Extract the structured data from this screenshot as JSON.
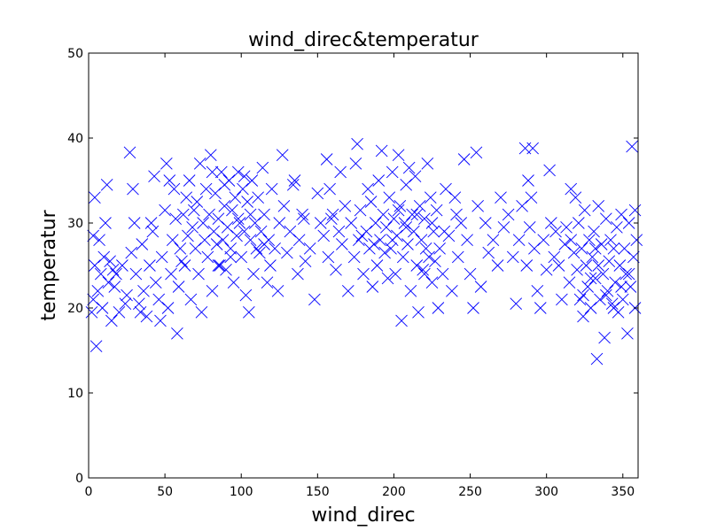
{
  "chart_data": {
    "type": "scatter",
    "title": "wind_direc&temperatur",
    "xlabel": "wind_direc",
    "ylabel": "temperatur",
    "xlim": [
      0,
      360
    ],
    "ylim": [
      0,
      50
    ],
    "xticks": [
      "0",
      "50",
      "100",
      "150",
      "200",
      "250",
      "300",
      "350"
    ],
    "yticks": [
      "0",
      "10",
      "20",
      "30",
      "40",
      "50"
    ],
    "marker": "x",
    "color": "#0000ff",
    "grid": false,
    "legend": "none",
    "points": [
      [
        2,
        19.5
      ],
      [
        3,
        21
      ],
      [
        4,
        25
      ],
      [
        5,
        15.5
      ],
      [
        6,
        22
      ],
      [
        7,
        28
      ],
      [
        8,
        24
      ],
      [
        9,
        20
      ],
      [
        10,
        26
      ],
      [
        11,
        30
      ],
      [
        12,
        34.5
      ],
      [
        13,
        23
      ],
      [
        14,
        25.5
      ],
      [
        15,
        18.5
      ],
      [
        17,
        22.5
      ],
      [
        18,
        24
      ],
      [
        20,
        19.5
      ],
      [
        22,
        25
      ],
      [
        25,
        21.5
      ],
      [
        27,
        38.3
      ],
      [
        28,
        26.5
      ],
      [
        29,
        34
      ],
      [
        30,
        30
      ],
      [
        31,
        24
      ],
      [
        33,
        20.5
      ],
      [
        35,
        27.5
      ],
      [
        36,
        22
      ],
      [
        38,
        19
      ],
      [
        40,
        25
      ],
      [
        42,
        29
      ],
      [
        43,
        35.5
      ],
      [
        44,
        23
      ],
      [
        46,
        21
      ],
      [
        48,
        26
      ],
      [
        50,
        31.5
      ],
      [
        51,
        37
      ],
      [
        52,
        20
      ],
      [
        54,
        24
      ],
      [
        55,
        28
      ],
      [
        56,
        34
      ],
      [
        57,
        30.5
      ],
      [
        58,
        17
      ],
      [
        59,
        22.5
      ],
      [
        60,
        27
      ],
      [
        62,
        31
      ],
      [
        63,
        25
      ],
      [
        64,
        33
      ],
      [
        65,
        28.5
      ],
      [
        66,
        35
      ],
      [
        67,
        21
      ],
      [
        68,
        29.5
      ],
      [
        70,
        27
      ],
      [
        71,
        32.5
      ],
      [
        72,
        24
      ],
      [
        73,
        37
      ],
      [
        74,
        19.5
      ],
      [
        75,
        30
      ],
      [
        76,
        28
      ],
      [
        77,
        34
      ],
      [
        78,
        26
      ],
      [
        79,
        31
      ],
      [
        80,
        38
      ],
      [
        81,
        22
      ],
      [
        82,
        29
      ],
      [
        83,
        33.5
      ],
      [
        84,
        27.5
      ],
      [
        85,
        30.5
      ],
      [
        86,
        25
      ],
      [
        87,
        36
      ],
      [
        88,
        28
      ],
      [
        89,
        32
      ],
      [
        90,
        24.5
      ],
      [
        91,
        29.5
      ],
      [
        92,
        35
      ],
      [
        93,
        27
      ],
      [
        94,
        31.5
      ],
      [
        95,
        23
      ],
      [
        96,
        33
      ],
      [
        97,
        28.5
      ],
      [
        98,
        36
      ],
      [
        99,
        30
      ],
      [
        100,
        26
      ],
      [
        101,
        34
      ],
      [
        102,
        29
      ],
      [
        103,
        21.5
      ],
      [
        104,
        32.5
      ],
      [
        105,
        19.5
      ],
      [
        106,
        28
      ],
      [
        107,
        35
      ],
      [
        108,
        24
      ],
      [
        109,
        30
      ],
      [
        110,
        27
      ],
      [
        111,
        33
      ],
      [
        112,
        26.5
      ],
      [
        113,
        29
      ],
      [
        114,
        36.5
      ],
      [
        115,
        31
      ],
      [
        117,
        23
      ],
      [
        118,
        28
      ],
      [
        120,
        34
      ],
      [
        122,
        27
      ],
      [
        124,
        22
      ],
      [
        125,
        30
      ],
      [
        127,
        38
      ],
      [
        128,
        32
      ],
      [
        130,
        26.5
      ],
      [
        132,
        29
      ],
      [
        134,
        34.5
      ],
      [
        135,
        35
      ],
      [
        137,
        24
      ],
      [
        138,
        28
      ],
      [
        140,
        31
      ],
      [
        142,
        25.5
      ],
      [
        145,
        27
      ],
      [
        148,
        21
      ],
      [
        150,
        33.5
      ],
      [
        152,
        30
      ],
      [
        154,
        28.5
      ],
      [
        156,
        37.5
      ],
      [
        157,
        26
      ],
      [
        158,
        34
      ],
      [
        160,
        31
      ],
      [
        162,
        24.5
      ],
      [
        164,
        29
      ],
      [
        165,
        36
      ],
      [
        166,
        27.5
      ],
      [
        168,
        32
      ],
      [
        170,
        22
      ],
      [
        172,
        30
      ],
      [
        174,
        26
      ],
      [
        175,
        37
      ],
      [
        176,
        39.3
      ],
      [
        177,
        28
      ],
      [
        178,
        31.5
      ],
      [
        180,
        24
      ],
      [
        182,
        29
      ],
      [
        183,
        34
      ],
      [
        184,
        27
      ],
      [
        185,
        32.5
      ],
      [
        186,
        22.5
      ],
      [
        188,
        30
      ],
      [
        189,
        25
      ],
      [
        190,
        35
      ],
      [
        191,
        28
      ],
      [
        192,
        38.5
      ],
      [
        193,
        31
      ],
      [
        194,
        26.5
      ],
      [
        195,
        29.5
      ],
      [
        196,
        23.5
      ],
      [
        197,
        33
      ],
      [
        198,
        27
      ],
      [
        199,
        36
      ],
      [
        200,
        30.5
      ],
      [
        201,
        24
      ],
      [
        202,
        28.5
      ],
      [
        203,
        38
      ],
      [
        204,
        32
      ],
      [
        205,
        18.5
      ],
      [
        206,
        26
      ],
      [
        207,
        30
      ],
      [
        208,
        34.5
      ],
      [
        209,
        27.5
      ],
      [
        210,
        36.5
      ],
      [
        211,
        22
      ],
      [
        212,
        31
      ],
      [
        213,
        29
      ],
      [
        214,
        35.5
      ],
      [
        215,
        25
      ],
      [
        216,
        19.5
      ],
      [
        217,
        32
      ],
      [
        218,
        28
      ],
      [
        219,
        24.5
      ],
      [
        220,
        30.5
      ],
      [
        221,
        27
      ],
      [
        222,
        37
      ],
      [
        223,
        26
      ],
      [
        224,
        33
      ],
      [
        225,
        23
      ],
      [
        226,
        29
      ],
      [
        227,
        25.5
      ],
      [
        228,
        31.5
      ],
      [
        229,
        20
      ],
      [
        230,
        27
      ],
      [
        232,
        24
      ],
      [
        234,
        34
      ],
      [
        236,
        28.5
      ],
      [
        238,
        22
      ],
      [
        240,
        33
      ],
      [
        242,
        26
      ],
      [
        244,
        30
      ],
      [
        246,
        37.5
      ],
      [
        248,
        28
      ],
      [
        250,
        24
      ],
      [
        252,
        20
      ],
      [
        254,
        38.3
      ],
      [
        255,
        32
      ],
      [
        257,
        22.5
      ],
      [
        260,
        30
      ],
      [
        262,
        26.5
      ],
      [
        265,
        28
      ],
      [
        268,
        25
      ],
      [
        270,
        33
      ],
      [
        272,
        29.5
      ],
      [
        275,
        31
      ],
      [
        278,
        26
      ],
      [
        280,
        20.5
      ],
      [
        282,
        28
      ],
      [
        284,
        32
      ],
      [
        286,
        38.8
      ],
      [
        287,
        25
      ],
      [
        288,
        35
      ],
      [
        289,
        29.5
      ],
      [
        290,
        33
      ],
      [
        291,
        38.8
      ],
      [
        292,
        27
      ],
      [
        294,
        22
      ],
      [
        296,
        20
      ],
      [
        298,
        28
      ],
      [
        300,
        24.5
      ],
      [
        302,
        36.2
      ],
      [
        303,
        30
      ],
      [
        305,
        26
      ],
      [
        306,
        29
      ],
      [
        308,
        25
      ],
      [
        310,
        21
      ],
      [
        312,
        27.5
      ],
      [
        313,
        29.5
      ],
      [
        315,
        23
      ],
      [
        316,
        28
      ],
      [
        318,
        26.5
      ],
      [
        319,
        33
      ],
      [
        320,
        24.5
      ],
      [
        321,
        30
      ],
      [
        322,
        21
      ],
      [
        323,
        27
      ],
      [
        324,
        19
      ],
      [
        325,
        31.5
      ],
      [
        326,
        25
      ],
      [
        327,
        22.5
      ],
      [
        328,
        28
      ],
      [
        329,
        20
      ],
      [
        330,
        26
      ],
      [
        331,
        29
      ],
      [
        332,
        23.5
      ],
      [
        333,
        14
      ],
      [
        334,
        32
      ],
      [
        335,
        21
      ],
      [
        336,
        27.5
      ],
      [
        337,
        24
      ],
      [
        338,
        16.5
      ],
      [
        339,
        30.5
      ],
      [
        340,
        22
      ],
      [
        341,
        25.5
      ],
      [
        342,
        28
      ],
      [
        343,
        20.5
      ],
      [
        344,
        27
      ],
      [
        345,
        23
      ],
      [
        346,
        29.5
      ],
      [
        347,
        19.5
      ],
      [
        348,
        25
      ],
      [
        349,
        31
      ],
      [
        350,
        21
      ],
      [
        351,
        27
      ],
      [
        352,
        24
      ],
      [
        353,
        17
      ],
      [
        354,
        30
      ],
      [
        355,
        22.5
      ],
      [
        356,
        39
      ],
      [
        357,
        26
      ],
      [
        358,
        20
      ],
      [
        359,
        28
      ],
      [
        3,
        28.5
      ],
      [
        4,
        33
      ],
      [
        16,
        24.5
      ],
      [
        24,
        20.5
      ],
      [
        34,
        19.5
      ],
      [
        41,
        30
      ],
      [
        47,
        18.5
      ],
      [
        53,
        35
      ],
      [
        61,
        25.5
      ],
      [
        69,
        31.5
      ],
      [
        81,
        36
      ],
      [
        85,
        25
      ],
      [
        89,
        34.5
      ],
      [
        93,
        26
      ],
      [
        98,
        30.5
      ],
      [
        102,
        35.5
      ],
      [
        106,
        31
      ],
      [
        115,
        27.5
      ],
      [
        119,
        25
      ],
      [
        141,
        30.5
      ],
      [
        159,
        30.5
      ],
      [
        179,
        28.5
      ],
      [
        187,
        27.5
      ],
      [
        199,
        28
      ],
      [
        203,
        31.5
      ],
      [
        208,
        29.5
      ],
      [
        215,
        31
      ],
      [
        220,
        24
      ],
      [
        225,
        30
      ],
      [
        233,
        29
      ],
      [
        241,
        31
      ],
      [
        329,
        23.5
      ],
      [
        334,
        25
      ],
      [
        339,
        21.5
      ],
      [
        344,
        20
      ],
      [
        349,
        22.5
      ],
      [
        354,
        24
      ],
      [
        358,
        31.5
      ],
      [
        332,
        27
      ],
      [
        324,
        21.5
      ],
      [
        316,
        34
      ]
    ]
  }
}
